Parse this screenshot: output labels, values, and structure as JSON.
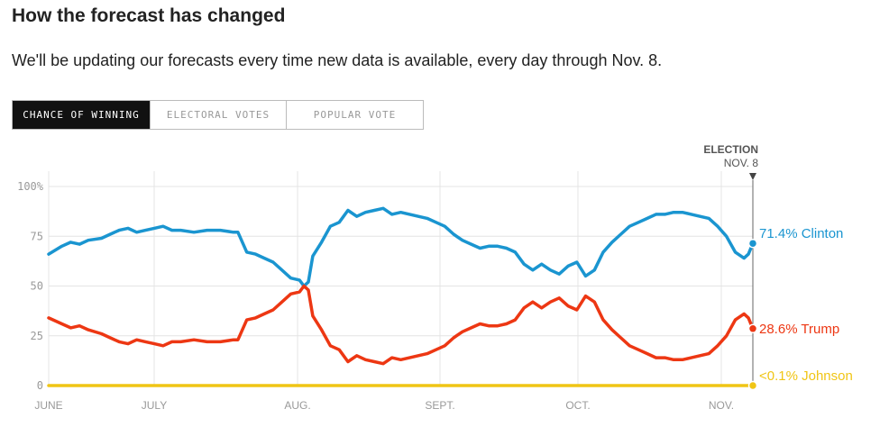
{
  "header": {
    "title": "How the forecast has changed",
    "subtitle": "We'll be updating our forecasts every time new data is available, every day through Nov. 8."
  },
  "tabs": [
    {
      "label": "CHANCE OF WINNING",
      "active": true
    },
    {
      "label": "ELECTORAL VOTES",
      "active": false
    },
    {
      "label": "POPULAR VOTE",
      "active": false
    }
  ],
  "chart_data": {
    "type": "line",
    "x_ticks": [
      "JUNE",
      "JULY",
      "AUG.",
      "SEPT.",
      "OCT.",
      "NOV."
    ],
    "y_ticks": [
      "100%",
      "75",
      "50",
      "25",
      "0"
    ],
    "ylim": [
      0,
      100
    ],
    "xlim": [
      "2016-06-01",
      "2016-11-08"
    ],
    "grid": true,
    "election_marker": {
      "line1": "ELECTION",
      "line2": "NOV. 8",
      "date": "2016-11-08"
    },
    "series": [
      {
        "name": "Clinton",
        "label": "71.4% Clinton",
        "color": "#1a95d0",
        "points": [
          [
            "2016-06-01",
            66
          ],
          [
            "2016-06-04",
            70
          ],
          [
            "2016-06-06",
            72
          ],
          [
            "2016-06-08",
            71
          ],
          [
            "2016-06-10",
            73
          ],
          [
            "2016-06-13",
            74
          ],
          [
            "2016-06-15",
            76
          ],
          [
            "2016-06-17",
            78
          ],
          [
            "2016-06-19",
            79
          ],
          [
            "2016-06-21",
            77
          ],
          [
            "2016-06-23",
            78
          ],
          [
            "2016-06-25",
            79
          ],
          [
            "2016-06-27",
            80
          ],
          [
            "2016-06-29",
            78
          ],
          [
            "2016-07-01",
            78
          ],
          [
            "2016-07-04",
            77
          ],
          [
            "2016-07-07",
            78
          ],
          [
            "2016-07-10",
            78
          ],
          [
            "2016-07-13",
            77
          ],
          [
            "2016-07-14",
            77
          ],
          [
            "2016-07-16",
            67
          ],
          [
            "2016-07-18",
            66
          ],
          [
            "2016-07-20",
            64
          ],
          [
            "2016-07-22",
            62
          ],
          [
            "2016-07-24",
            58
          ],
          [
            "2016-07-26",
            54
          ],
          [
            "2016-07-28",
            53
          ],
          [
            "2016-07-29",
            50
          ],
          [
            "2016-07-30",
            52
          ],
          [
            "2016-07-31",
            65
          ],
          [
            "2016-08-02",
            72
          ],
          [
            "2016-08-04",
            80
          ],
          [
            "2016-08-06",
            82
          ],
          [
            "2016-08-08",
            88
          ],
          [
            "2016-08-10",
            85
          ],
          [
            "2016-08-12",
            87
          ],
          [
            "2016-08-14",
            88
          ],
          [
            "2016-08-16",
            89
          ],
          [
            "2016-08-18",
            86
          ],
          [
            "2016-08-20",
            87
          ],
          [
            "2016-08-22",
            86
          ],
          [
            "2016-08-24",
            85
          ],
          [
            "2016-08-26",
            84
          ],
          [
            "2016-08-28",
            82
          ],
          [
            "2016-08-30",
            80
          ],
          [
            "2016-09-01",
            76
          ],
          [
            "2016-09-03",
            73
          ],
          [
            "2016-09-05",
            71
          ],
          [
            "2016-09-07",
            69
          ],
          [
            "2016-09-09",
            70
          ],
          [
            "2016-09-11",
            70
          ],
          [
            "2016-09-13",
            69
          ],
          [
            "2016-09-15",
            67
          ],
          [
            "2016-09-17",
            61
          ],
          [
            "2016-09-19",
            58
          ],
          [
            "2016-09-21",
            61
          ],
          [
            "2016-09-23",
            58
          ],
          [
            "2016-09-25",
            56
          ],
          [
            "2016-09-27",
            60
          ],
          [
            "2016-09-29",
            62
          ],
          [
            "2016-10-01",
            55
          ],
          [
            "2016-10-03",
            58
          ],
          [
            "2016-10-05",
            67
          ],
          [
            "2016-10-07",
            72
          ],
          [
            "2016-10-09",
            76
          ],
          [
            "2016-10-11",
            80
          ],
          [
            "2016-10-13",
            82
          ],
          [
            "2016-10-15",
            84
          ],
          [
            "2016-10-17",
            86
          ],
          [
            "2016-10-19",
            86
          ],
          [
            "2016-10-21",
            87
          ],
          [
            "2016-10-23",
            87
          ],
          [
            "2016-10-25",
            86
          ],
          [
            "2016-10-27",
            85
          ],
          [
            "2016-10-29",
            84
          ],
          [
            "2016-10-31",
            80
          ],
          [
            "2016-11-02",
            75
          ],
          [
            "2016-11-04",
            67
          ],
          [
            "2016-11-06",
            64
          ],
          [
            "2016-11-07",
            66
          ],
          [
            "2016-11-08",
            71.4
          ]
        ]
      },
      {
        "name": "Trump",
        "label": "28.6% Trump",
        "color": "#ed3713",
        "points": [
          [
            "2016-06-01",
            34
          ],
          [
            "2016-06-04",
            31
          ],
          [
            "2016-06-06",
            29
          ],
          [
            "2016-06-08",
            30
          ],
          [
            "2016-06-10",
            28
          ],
          [
            "2016-06-13",
            26
          ],
          [
            "2016-06-15",
            24
          ],
          [
            "2016-06-17",
            22
          ],
          [
            "2016-06-19",
            21
          ],
          [
            "2016-06-21",
            23
          ],
          [
            "2016-06-23",
            22
          ],
          [
            "2016-06-25",
            21
          ],
          [
            "2016-06-27",
            20
          ],
          [
            "2016-06-29",
            22
          ],
          [
            "2016-07-01",
            22
          ],
          [
            "2016-07-04",
            23
          ],
          [
            "2016-07-07",
            22
          ],
          [
            "2016-07-10",
            22
          ],
          [
            "2016-07-13",
            23
          ],
          [
            "2016-07-14",
            23
          ],
          [
            "2016-07-16",
            33
          ],
          [
            "2016-07-18",
            34
          ],
          [
            "2016-07-20",
            36
          ],
          [
            "2016-07-22",
            38
          ],
          [
            "2016-07-24",
            42
          ],
          [
            "2016-07-26",
            46
          ],
          [
            "2016-07-28",
            47
          ],
          [
            "2016-07-29",
            50
          ],
          [
            "2016-07-30",
            48
          ],
          [
            "2016-07-31",
            35
          ],
          [
            "2016-08-02",
            28
          ],
          [
            "2016-08-04",
            20
          ],
          [
            "2016-08-06",
            18
          ],
          [
            "2016-08-08",
            12
          ],
          [
            "2016-08-10",
            15
          ],
          [
            "2016-08-12",
            13
          ],
          [
            "2016-08-14",
            12
          ],
          [
            "2016-08-16",
            11
          ],
          [
            "2016-08-18",
            14
          ],
          [
            "2016-08-20",
            13
          ],
          [
            "2016-08-22",
            14
          ],
          [
            "2016-08-24",
            15
          ],
          [
            "2016-08-26",
            16
          ],
          [
            "2016-08-28",
            18
          ],
          [
            "2016-08-30",
            20
          ],
          [
            "2016-09-01",
            24
          ],
          [
            "2016-09-03",
            27
          ],
          [
            "2016-09-05",
            29
          ],
          [
            "2016-09-07",
            31
          ],
          [
            "2016-09-09",
            30
          ],
          [
            "2016-09-11",
            30
          ],
          [
            "2016-09-13",
            31
          ],
          [
            "2016-09-15",
            33
          ],
          [
            "2016-09-17",
            39
          ],
          [
            "2016-09-19",
            42
          ],
          [
            "2016-09-21",
            39
          ],
          [
            "2016-09-23",
            42
          ],
          [
            "2016-09-25",
            44
          ],
          [
            "2016-09-27",
            40
          ],
          [
            "2016-09-29",
            38
          ],
          [
            "2016-10-01",
            45
          ],
          [
            "2016-10-03",
            42
          ],
          [
            "2016-10-05",
            33
          ],
          [
            "2016-10-07",
            28
          ],
          [
            "2016-10-09",
            24
          ],
          [
            "2016-10-11",
            20
          ],
          [
            "2016-10-13",
            18
          ],
          [
            "2016-10-15",
            16
          ],
          [
            "2016-10-17",
            14
          ],
          [
            "2016-10-19",
            14
          ],
          [
            "2016-10-21",
            13
          ],
          [
            "2016-10-23",
            13
          ],
          [
            "2016-10-25",
            14
          ],
          [
            "2016-10-27",
            15
          ],
          [
            "2016-10-29",
            16
          ],
          [
            "2016-10-31",
            20
          ],
          [
            "2016-11-02",
            25
          ],
          [
            "2016-11-04",
            33
          ],
          [
            "2016-11-06",
            36
          ],
          [
            "2016-11-07",
            34
          ],
          [
            "2016-11-08",
            28.6
          ]
        ]
      },
      {
        "name": "Johnson",
        "label": "<0.1% Johnson",
        "color": "#f0c515",
        "points": [
          [
            "2016-06-01",
            0
          ],
          [
            "2016-11-08",
            0
          ]
        ]
      }
    ]
  }
}
